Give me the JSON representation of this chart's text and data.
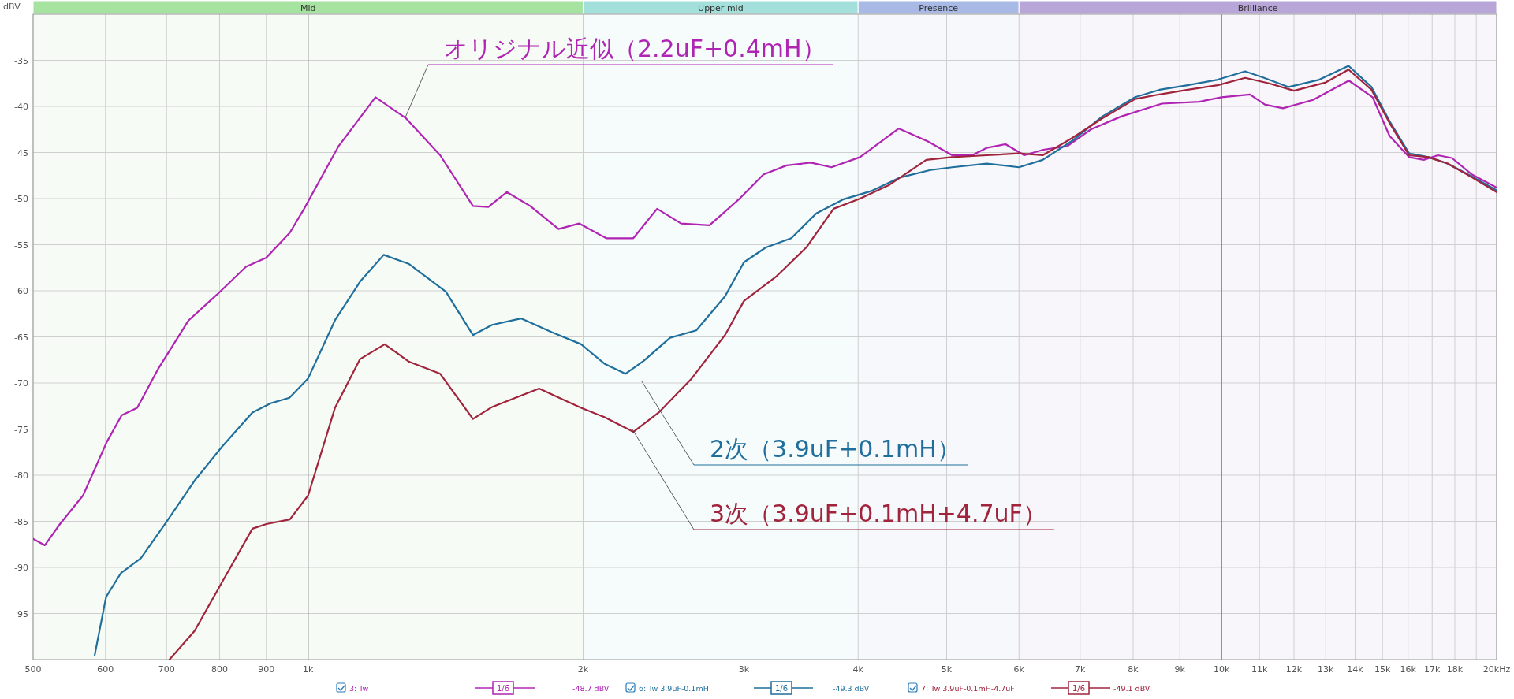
{
  "chart_data": {
    "type": "line",
    "log": "x",
    "grid": true,
    "ylabel": "dBV",
    "xlim": [
      500,
      20000
    ],
    "ylim": [
      -100,
      -30
    ],
    "xticks": [
      500,
      600,
      700,
      800,
      900,
      {
        "value": 1000,
        "label": "1k"
      },
      {
        "value": 2000,
        "label": "2k"
      },
      {
        "value": 3000,
        "label": "3k"
      },
      {
        "value": 4000,
        "label": "4k"
      },
      {
        "value": 5000,
        "label": "5k"
      },
      {
        "value": 6000,
        "label": "6k"
      },
      {
        "value": 7000,
        "label": "7k"
      },
      {
        "value": 8000,
        "label": "8k"
      },
      {
        "value": 9000,
        "label": "9k"
      },
      {
        "value": 10000,
        "label": "10k"
      },
      {
        "value": 11000,
        "label": "11k"
      },
      {
        "value": 12000,
        "label": "12k"
      },
      {
        "value": 13000,
        "label": "13k"
      },
      {
        "value": 14000,
        "label": "14k"
      },
      {
        "value": 15000,
        "label": "15k"
      },
      {
        "value": 16000,
        "label": "16k"
      },
      {
        "value": 17000,
        "label": "17k"
      },
      {
        "value": 18000,
        "label": "18k"
      },
      {
        "value": 19000,
        "label": null
      },
      {
        "value": 20000,
        "label": "20k"
      }
    ],
    "xlabel": "Hz",
    "yticks": [
      -35,
      -40,
      -45,
      -50,
      -55,
      -60,
      -65,
      -70,
      -75,
      -80,
      -85,
      -90,
      -95
    ],
    "bands": [
      {
        "axis": "x",
        "from": 500,
        "to": 2000,
        "label": "Mid",
        "color": "#a6e3a1"
      },
      {
        "axis": "x",
        "from": 2000,
        "to": 4000,
        "label": "Upper mid",
        "color": "#a3e0dc"
      },
      {
        "axis": "x",
        "from": 4000,
        "to": 6000,
        "label": "Presence",
        "color": "#a9b9e6"
      },
      {
        "axis": "x",
        "from": 6000,
        "to": 20000,
        "label": "Brilliance",
        "color": "#b9a6d9"
      }
    ],
    "series": [
      {
        "name": "オリジナル近似（2.2uF+0.4mH）",
        "color": "#b024b4",
        "x": [
          500,
          515,
          535,
          567,
          602,
          625,
          650,
          685,
          740,
          795,
          855,
          900,
          955,
          990,
          1080,
          1185,
          1280,
          1395,
          1515,
          1575,
          1650,
          1750,
          1880,
          1980,
          2120,
          2270,
          2410,
          2560,
          2750,
          2960,
          3150,
          3340,
          3550,
          3740,
          4020,
          4430,
          4770,
          5070,
          5330,
          5530,
          5800,
          6080,
          6380,
          6780,
          7190,
          7760,
          8600,
          9450,
          10000,
          10740,
          11150,
          11670,
          12590,
          13780,
          14630,
          15270,
          16040,
          16640,
          17250,
          17870,
          18800,
          20000
        ],
        "values": [
          -86.9,
          -87.6,
          -85.3,
          -82.2,
          -76.4,
          -73.5,
          -72.7,
          -68.5,
          -63.2,
          -60.4,
          -57.4,
          -56.4,
          -53.7,
          -51.1,
          -44.3,
          -39.0,
          -41.3,
          -45.3,
          -50.8,
          -50.9,
          -49.3,
          -50.8,
          -53.3,
          -52.7,
          -54.3,
          -54.3,
          -51.1,
          -52.7,
          -52.9,
          -50.1,
          -47.4,
          -46.4,
          -46.1,
          -46.6,
          -45.5,
          -42.4,
          -43.8,
          -45.3,
          -45.3,
          -44.5,
          -44.1,
          -45.3,
          -44.7,
          -44.3,
          -42.5,
          -41.1,
          -39.7,
          -39.5,
          -39.0,
          -38.7,
          -39.8,
          -40.2,
          -39.3,
          -37.2,
          -39.0,
          -43.2,
          -45.5,
          -45.8,
          -45.3,
          -45.6,
          -47.4,
          -48.8
        ]
      },
      {
        "name": "2次（3.9uF+0.1mH）",
        "color": "#1f6e9c",
        "x": [
          584,
          601,
          624,
          656,
          697,
          751,
          805,
          869,
          910,
          954,
          1000,
          1070,
          1140,
          1210,
          1290,
          1415,
          1515,
          1590,
          1710,
          1850,
          1990,
          2110,
          2225,
          2330,
          2490,
          2660,
          2860,
          3000,
          3170,
          3380,
          3600,
          3850,
          4130,
          4450,
          4800,
          5070,
          5530,
          6000,
          6370,
          6870,
          7400,
          8040,
          8550,
          9180,
          9900,
          10610,
          11130,
          11840,
          12790,
          13770,
          14590,
          15270,
          16040,
          16840,
          17670,
          18800,
          20000
        ],
        "values": [
          -99.5,
          -93.2,
          -90.6,
          -89.0,
          -85.3,
          -80.6,
          -76.9,
          -73.2,
          -72.2,
          -71.6,
          -69.5,
          -63.2,
          -59.0,
          -56.1,
          -57.1,
          -60.1,
          -64.8,
          -63.7,
          -63.0,
          -64.5,
          -65.8,
          -67.9,
          -69.0,
          -67.6,
          -65.1,
          -64.3,
          -60.6,
          -56.9,
          -55.3,
          -54.3,
          -51.6,
          -50.1,
          -49.2,
          -47.7,
          -46.9,
          -46.6,
          -46.2,
          -46.6,
          -45.8,
          -43.7,
          -41.1,
          -39.0,
          -38.2,
          -37.7,
          -37.1,
          -36.2,
          -36.9,
          -37.9,
          -37.1,
          -35.6,
          -37.9,
          -41.6,
          -45.1,
          -45.5,
          -46.2,
          -47.6,
          -49.1
        ]
      },
      {
        "name": "3次（3.9uF+0.1mH+4.7uF）",
        "color": "#a0243c",
        "x": [
          705,
          751,
          805,
          869,
          900,
          955,
          1000,
          1070,
          1140,
          1213,
          1290,
          1395,
          1515,
          1590,
          1790,
          1990,
          2110,
          2270,
          2420,
          2630,
          2860,
          3000,
          3250,
          3510,
          3760,
          4020,
          4330,
          4750,
          5070,
          5530,
          6000,
          6370,
          6870,
          7400,
          8040,
          8550,
          9180,
          9900,
          10610,
          11270,
          12000,
          13000,
          13770,
          14590,
          15270,
          16040,
          16840,
          17670,
          18800,
          20000
        ],
        "values": [
          -100,
          -96.9,
          -91.6,
          -85.8,
          -85.3,
          -84.8,
          -82.2,
          -72.7,
          -67.4,
          -65.8,
          -67.7,
          -69.0,
          -73.9,
          -72.6,
          -70.6,
          -72.7,
          -73.7,
          -75.3,
          -73.2,
          -69.5,
          -64.8,
          -61.1,
          -58.5,
          -55.3,
          -51.1,
          -50.0,
          -48.5,
          -45.8,
          -45.5,
          -45.3,
          -45.1,
          -45.3,
          -43.4,
          -41.3,
          -39.2,
          -38.7,
          -38.2,
          -37.7,
          -36.9,
          -37.5,
          -38.3,
          -37.4,
          -36.0,
          -38.2,
          -41.8,
          -45.3,
          -45.5,
          -46.2,
          -47.7,
          -49.3
        ]
      }
    ],
    "annotations": [
      "3: Tw",
      "1/6",
      "-48.7 dBV",
      "6: Tw 3.9uF-0.1mH",
      "1/6",
      "-49.3 dBV",
      "7: Tw 3.9uF-0.1mH-4.7uF",
      "1/6",
      "-49.1 dBV"
    ]
  }
}
